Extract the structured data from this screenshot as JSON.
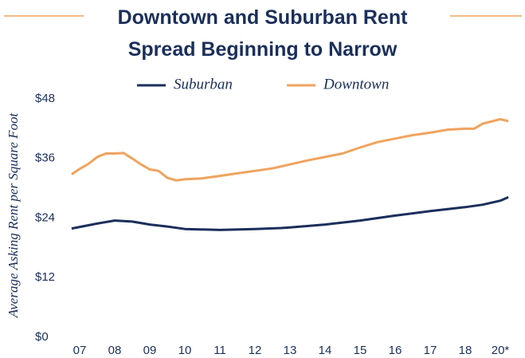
{
  "chart_data": {
    "type": "line",
    "title": "Downtown and Suburban Rent Spread Beginning to Narrow",
    "y_label": "Average Asking Rent per Square Foot",
    "xlim": [
      -0.25,
      12.25
    ],
    "xticks": [
      {
        "value": 0,
        "label": "07"
      },
      {
        "value": 1,
        "label": "08"
      },
      {
        "value": 2,
        "label": "09"
      },
      {
        "value": 3,
        "label": "10"
      },
      {
        "value": 4,
        "label": "11"
      },
      {
        "value": 5,
        "label": "12"
      },
      {
        "value": 6,
        "label": "13"
      },
      {
        "value": 7,
        "label": "14"
      },
      {
        "value": 8,
        "label": "15"
      },
      {
        "value": 9,
        "label": "16"
      },
      {
        "value": 10,
        "label": "17"
      },
      {
        "value": 11,
        "label": "18"
      },
      {
        "value": 12,
        "label": "20*"
      }
    ],
    "ylim": [
      0,
      48
    ],
    "yticks": [
      {
        "value": 0,
        "label": "$0"
      },
      {
        "value": 12,
        "label": "$12"
      },
      {
        "value": 24,
        "label": "$24"
      },
      {
        "value": 36,
        "label": "$36"
      },
      {
        "value": 48,
        "label": "$48"
      }
    ],
    "grid": false,
    "legend": "top",
    "series": [
      {
        "name": "Suburban",
        "color": "#1b2f5b",
        "x": [
          -0.23,
          0.5,
          1,
          1.5,
          2,
          2.5,
          3,
          4,
          5,
          5.75,
          6,
          7,
          8,
          9,
          10,
          11,
          11.5,
          12,
          12.23
        ],
        "values": [
          21.9,
          22.9,
          23.5,
          23.3,
          22.7,
          22.3,
          21.8,
          21.6,
          21.8,
          22.0,
          22.1,
          22.7,
          23.5,
          24.5,
          25.4,
          26.2,
          26.7,
          27.5,
          28.2
        ]
      },
      {
        "name": "Downtown",
        "color": "#f0a35e",
        "x": [
          -0.23,
          0,
          0.25,
          0.5,
          0.75,
          1,
          1.25,
          1.5,
          1.75,
          2,
          2.25,
          2.5,
          2.75,
          3,
          3.5,
          4,
          4.5,
          5,
          5.5,
          6,
          6.5,
          7,
          7.5,
          8,
          8.5,
          9,
          9.5,
          10,
          10.5,
          11,
          11.25,
          11.5,
          12,
          12.23
        ],
        "values": [
          32.8,
          33.9,
          34.9,
          36.3,
          37.0,
          37.0,
          37.1,
          36.0,
          34.8,
          33.8,
          33.5,
          32.1,
          31.6,
          31.8,
          32.0,
          32.5,
          33.0,
          33.5,
          34.0,
          34.8,
          35.6,
          36.3,
          37.0,
          38.2,
          39.3,
          40.0,
          40.7,
          41.2,
          41.8,
          42.0,
          42.0,
          43.0,
          43.9,
          43.5
        ]
      }
    ]
  }
}
